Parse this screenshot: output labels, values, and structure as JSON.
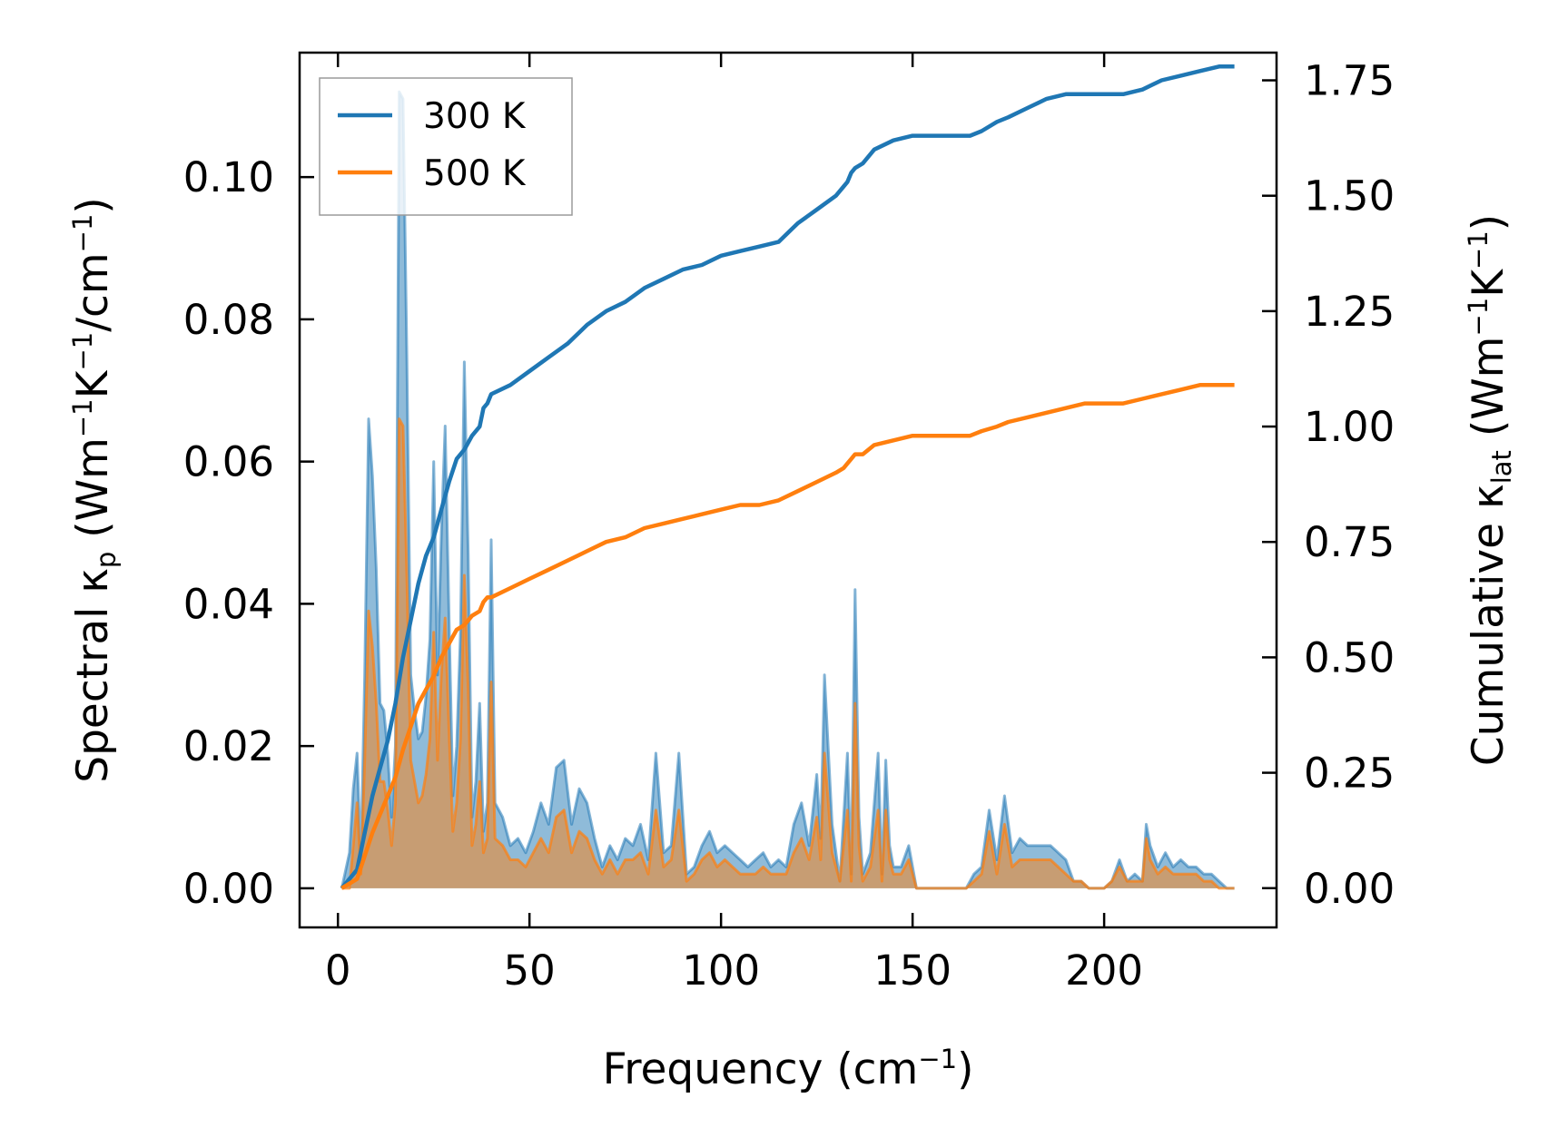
{
  "chart_data": {
    "type": "line",
    "xlabel": "Frequency (cm⁻¹)",
    "xlabel_parts": {
      "pre": "Frequency (cm",
      "sup": "−1",
      "post": ")"
    },
    "ylabel_left": "Spectral κₚ (Wm⁻¹K⁻¹/cm⁻¹)",
    "ylabel_left_parts": {
      "a": "Spectral κ",
      "sub": "p",
      "b": " (Wm",
      "sup1": "−1",
      "c": "K",
      "sup2": "−1",
      "d": "/cm",
      "sup3": "−1",
      "e": ")"
    },
    "ylabel_right": "Cumulative κ_lat (Wm⁻¹K⁻¹)",
    "ylabel_right_parts": {
      "a": "Cumulative κ",
      "sub": "lat",
      "b": " (Wm",
      "sup1": "−1",
      "c": "K",
      "sup2": "−1",
      "d": ")"
    },
    "xlim": [
      -10,
      245
    ],
    "ylim_left": [
      -0.0055,
      0.1175
    ],
    "ylim_right": [
      -0.085,
      1.81
    ],
    "x_ticks": [
      0,
      50,
      100,
      150,
      200
    ],
    "x_tick_labels": [
      "0",
      "50",
      "100",
      "150",
      "200"
    ],
    "y_left_ticks": [
      0.0,
      0.02,
      0.04,
      0.06,
      0.08,
      0.1
    ],
    "y_left_tick_labels": [
      "0.00",
      "0.02",
      "0.04",
      "0.06",
      "0.08",
      "0.10"
    ],
    "y_right_ticks": [
      0.0,
      0.25,
      0.5,
      0.75,
      1.0,
      1.25,
      1.5,
      1.75
    ],
    "y_right_tick_labels": [
      "0.00",
      "0.25",
      "0.50",
      "0.75",
      "1.00",
      "1.25",
      "1.50",
      "1.75"
    ],
    "legend": {
      "position": "top-left",
      "entries": [
        "300 K",
        "500 K"
      ]
    },
    "colors": {
      "300K": "#1f77b4",
      "500K": "#ff7f0e",
      "fill_300K": "#1f77b4",
      "fill_500K": "#ff7f0e",
      "axes": "#000000"
    },
    "series": [
      {
        "name": "300 K spectral",
        "axis": "left",
        "x": [
          1,
          3,
          4,
          5,
          6,
          7,
          8,
          9,
          10,
          11,
          12,
          13,
          14,
          15,
          16,
          17,
          18,
          19,
          20,
          21,
          22,
          23,
          24,
          25,
          26,
          27,
          28,
          29,
          30,
          31,
          32,
          33,
          34,
          35,
          36,
          37,
          38,
          39,
          40,
          41,
          43,
          45,
          47,
          49,
          51,
          53,
          55,
          57,
          59,
          61,
          63,
          65,
          67,
          69,
          71,
          73,
          75,
          77,
          79,
          81,
          83,
          85,
          87,
          89,
          91,
          93,
          95,
          97,
          99,
          101,
          103,
          105,
          107,
          109,
          111,
          113,
          115,
          117,
          119,
          121,
          123,
          125,
          126,
          127,
          129,
          131,
          133,
          134,
          135,
          136,
          137,
          139,
          141,
          142,
          143,
          144,
          145,
          147,
          149,
          151,
          153,
          156,
          159,
          162,
          164,
          166,
          168,
          170,
          172,
          174,
          176,
          178,
          180,
          182,
          184,
          186,
          188,
          190,
          192,
          194,
          196,
          198,
          200,
          202,
          204,
          206,
          208,
          210,
          211,
          212,
          214,
          216,
          218,
          220,
          222,
          224,
          226,
          228,
          230,
          232,
          234
        ],
        "values": [
          0.0,
          0.005,
          0.014,
          0.019,
          0.004,
          0.03,
          0.066,
          0.058,
          0.045,
          0.026,
          0.025,
          0.019,
          0.01,
          0.02,
          0.112,
          0.111,
          0.075,
          0.03,
          0.025,
          0.021,
          0.022,
          0.027,
          0.035,
          0.06,
          0.03,
          0.05,
          0.065,
          0.038,
          0.013,
          0.02,
          0.036,
          0.074,
          0.047,
          0.01,
          0.015,
          0.026,
          0.008,
          0.012,
          0.049,
          0.012,
          0.01,
          0.006,
          0.007,
          0.005,
          0.008,
          0.012,
          0.009,
          0.017,
          0.018,
          0.009,
          0.014,
          0.012,
          0.007,
          0.003,
          0.006,
          0.004,
          0.007,
          0.006,
          0.009,
          0.004,
          0.019,
          0.005,
          0.006,
          0.019,
          0.002,
          0.003,
          0.006,
          0.008,
          0.005,
          0.006,
          0.005,
          0.004,
          0.003,
          0.004,
          0.005,
          0.003,
          0.004,
          0.003,
          0.009,
          0.012,
          0.006,
          0.016,
          0.007,
          0.03,
          0.009,
          0.001,
          0.019,
          0.002,
          0.042,
          0.01,
          0.002,
          0.005,
          0.019,
          0.002,
          0.018,
          0.006,
          0.003,
          0.003,
          0.006,
          0.0,
          0.0,
          0.0,
          0.0,
          0.0,
          0.0,
          0.002,
          0.003,
          0.011,
          0.004,
          0.013,
          0.005,
          0.007,
          0.006,
          0.006,
          0.006,
          0.006,
          0.005,
          0.004,
          0.001,
          0.001,
          0.0,
          0.0,
          0.0,
          0.001,
          0.004,
          0.001,
          0.002,
          0.001,
          0.009,
          0.006,
          0.003,
          0.005,
          0.003,
          0.004,
          0.003,
          0.003,
          0.002,
          0.002,
          0.001,
          0.0,
          0.0
        ]
      },
      {
        "name": "500 K spectral",
        "axis": "left",
        "x": [
          1,
          3,
          4,
          5,
          6,
          7,
          8,
          9,
          10,
          11,
          12,
          13,
          14,
          15,
          16,
          17,
          18,
          19,
          20,
          21,
          22,
          23,
          24,
          25,
          26,
          27,
          28,
          29,
          30,
          31,
          32,
          33,
          34,
          35,
          36,
          37,
          38,
          39,
          40,
          41,
          43,
          45,
          47,
          49,
          51,
          53,
          55,
          57,
          59,
          61,
          63,
          65,
          67,
          69,
          71,
          73,
          75,
          77,
          79,
          81,
          83,
          85,
          87,
          89,
          91,
          93,
          95,
          97,
          99,
          101,
          103,
          105,
          107,
          109,
          111,
          113,
          115,
          117,
          119,
          121,
          123,
          125,
          126,
          127,
          129,
          131,
          133,
          134,
          135,
          136,
          137,
          139,
          141,
          142,
          143,
          144,
          145,
          147,
          149,
          151,
          153,
          156,
          159,
          162,
          164,
          166,
          168,
          170,
          172,
          174,
          176,
          178,
          180,
          182,
          184,
          186,
          188,
          190,
          192,
          194,
          196,
          198,
          200,
          202,
          204,
          206,
          208,
          210,
          211,
          212,
          214,
          216,
          218,
          220,
          222,
          224,
          226,
          228,
          230,
          232,
          234
        ],
        "values": [
          0.0,
          0.0,
          0.006,
          0.012,
          0.002,
          0.018,
          0.039,
          0.034,
          0.026,
          0.015,
          0.015,
          0.011,
          0.006,
          0.012,
          0.066,
          0.065,
          0.044,
          0.018,
          0.015,
          0.012,
          0.013,
          0.016,
          0.021,
          0.036,
          0.018,
          0.03,
          0.038,
          0.022,
          0.008,
          0.012,
          0.021,
          0.044,
          0.028,
          0.006,
          0.009,
          0.015,
          0.005,
          0.007,
          0.029,
          0.007,
          0.006,
          0.004,
          0.004,
          0.003,
          0.005,
          0.007,
          0.005,
          0.01,
          0.011,
          0.005,
          0.008,
          0.007,
          0.004,
          0.002,
          0.004,
          0.002,
          0.004,
          0.004,
          0.005,
          0.002,
          0.011,
          0.003,
          0.004,
          0.011,
          0.001,
          0.002,
          0.004,
          0.005,
          0.003,
          0.004,
          0.003,
          0.002,
          0.002,
          0.002,
          0.003,
          0.002,
          0.002,
          0.002,
          0.005,
          0.007,
          0.004,
          0.01,
          0.004,
          0.019,
          0.005,
          0.001,
          0.011,
          0.001,
          0.026,
          0.006,
          0.001,
          0.003,
          0.011,
          0.001,
          0.011,
          0.004,
          0.002,
          0.002,
          0.004,
          0.0,
          0.0,
          0.0,
          0.0,
          0.0,
          0.0,
          0.001,
          0.002,
          0.008,
          0.002,
          0.009,
          0.003,
          0.004,
          0.004,
          0.004,
          0.004,
          0.004,
          0.003,
          0.002,
          0.001,
          0.001,
          0.0,
          0.0,
          0.0,
          0.001,
          0.003,
          0.001,
          0.001,
          0.001,
          0.007,
          0.004,
          0.002,
          0.003,
          0.002,
          0.002,
          0.002,
          0.002,
          0.001,
          0.001,
          0.0,
          0.0,
          0.0
        ]
      },
      {
        "name": "300 K cumulative",
        "axis": "right",
        "x": [
          1,
          3,
          5,
          7,
          9,
          11,
          13,
          15,
          17,
          19,
          21,
          23,
          25,
          27,
          29,
          31,
          33,
          35,
          37,
          38,
          39,
          40,
          45,
          50,
          55,
          60,
          65,
          70,
          75,
          80,
          85,
          90,
          95,
          100,
          105,
          110,
          115,
          120,
          125,
          130,
          132,
          133,
          134,
          135,
          137,
          140,
          145,
          150,
          155,
          160,
          165,
          168,
          172,
          175,
          180,
          185,
          190,
          195,
          200,
          205,
          210,
          215,
          220,
          225,
          230,
          234
        ],
        "values": [
          0.0,
          0.02,
          0.04,
          0.12,
          0.2,
          0.26,
          0.32,
          0.4,
          0.5,
          0.58,
          0.66,
          0.72,
          0.76,
          0.82,
          0.88,
          0.93,
          0.95,
          0.98,
          1.0,
          1.04,
          1.05,
          1.07,
          1.09,
          1.12,
          1.15,
          1.18,
          1.22,
          1.25,
          1.27,
          1.3,
          1.32,
          1.34,
          1.35,
          1.37,
          1.38,
          1.39,
          1.4,
          1.44,
          1.47,
          1.5,
          1.52,
          1.53,
          1.55,
          1.56,
          1.57,
          1.6,
          1.62,
          1.63,
          1.63,
          1.63,
          1.63,
          1.64,
          1.66,
          1.67,
          1.69,
          1.71,
          1.72,
          1.72,
          1.72,
          1.72,
          1.73,
          1.75,
          1.76,
          1.77,
          1.78,
          1.78
        ]
      },
      {
        "name": "500 K cumulative",
        "axis": "right",
        "x": [
          1,
          3,
          5,
          7,
          9,
          11,
          13,
          15,
          17,
          19,
          21,
          23,
          25,
          27,
          29,
          31,
          33,
          35,
          37,
          38,
          39,
          40,
          45,
          50,
          55,
          60,
          65,
          70,
          75,
          80,
          85,
          90,
          95,
          100,
          105,
          110,
          115,
          120,
          125,
          130,
          132,
          133,
          134,
          135,
          137,
          140,
          145,
          150,
          155,
          160,
          165,
          168,
          172,
          175,
          180,
          185,
          190,
          195,
          200,
          205,
          210,
          215,
          220,
          225,
          230,
          234
        ],
        "values": [
          0.0,
          0.01,
          0.02,
          0.07,
          0.12,
          0.16,
          0.2,
          0.24,
          0.3,
          0.35,
          0.4,
          0.43,
          0.46,
          0.5,
          0.53,
          0.56,
          0.57,
          0.59,
          0.6,
          0.62,
          0.63,
          0.63,
          0.65,
          0.67,
          0.69,
          0.71,
          0.73,
          0.75,
          0.76,
          0.78,
          0.79,
          0.8,
          0.81,
          0.82,
          0.83,
          0.83,
          0.84,
          0.86,
          0.88,
          0.9,
          0.91,
          0.92,
          0.93,
          0.94,
          0.94,
          0.96,
          0.97,
          0.98,
          0.98,
          0.98,
          0.98,
          0.99,
          1.0,
          1.01,
          1.02,
          1.03,
          1.04,
          1.05,
          1.05,
          1.05,
          1.06,
          1.07,
          1.08,
          1.09,
          1.09,
          1.09
        ]
      }
    ]
  }
}
